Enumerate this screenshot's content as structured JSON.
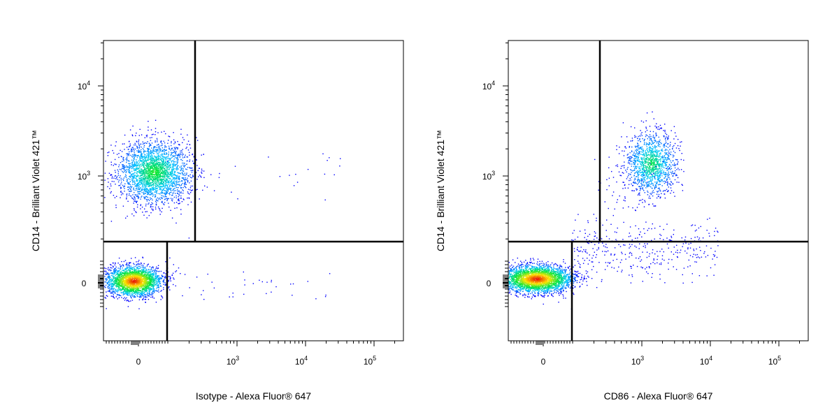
{
  "chart_data": [
    {
      "type": "scatter",
      "title": "",
      "xlabel": "Isotype - Alexa Fluor® 647",
      "ylabel": "CD14 - Brilliant Violet 421™",
      "x_scale": "biexponential",
      "y_scale": "biexponential",
      "xlim": [
        -150,
        150000
      ],
      "ylim": [
        -400,
        30000
      ],
      "x_ticks": [
        {
          "value": 0,
          "label": "0"
        },
        {
          "value": 1000,
          "label": "10",
          "exp": "3"
        },
        {
          "value": 10000,
          "label": "10",
          "exp": "4"
        },
        {
          "value": 100000,
          "label": "10",
          "exp": "5"
        }
      ],
      "y_ticks": [
        {
          "value": 0,
          "label": "0"
        },
        {
          "value": 1000,
          "label": "10",
          "exp": "3"
        },
        {
          "value": 10000,
          "label": "10",
          "exp": "4"
        }
      ],
      "gates": {
        "horizontal_y": 220,
        "upper_vertical_x": 300,
        "lower_vertical_x": 100
      },
      "populations": [
        {
          "name": "",
          "x_center": 20,
          "y_center": 1000,
          "count": 2600
        },
        {
          "name": "",
          "x_center": -10,
          "y_center": 0,
          "count": 2400
        }
      ]
    },
    {
      "type": "scatter",
      "title": "",
      "xlabel": "CD86 - Alexa Fluor® 647",
      "ylabel": "CD14 - Brilliant Violet 421™",
      "x_scale": "biexponential",
      "y_scale": "biexponential",
      "xlim": [
        -150,
        150000
      ],
      "ylim": [
        -400,
        30000
      ],
      "x_ticks": [
        {
          "value": 0,
          "label": "0"
        },
        {
          "value": 1000,
          "label": "10",
          "exp": "3"
        },
        {
          "value": 10000,
          "label": "10",
          "exp": "4"
        },
        {
          "value": 100000,
          "label": "10",
          "exp": "5"
        }
      ],
      "y_ticks": [
        {
          "value": 0,
          "label": "0"
        },
        {
          "value": 1000,
          "label": "10",
          "exp": "3"
        },
        {
          "value": 10000,
          "label": "10",
          "exp": "4"
        }
      ],
      "gates": {
        "horizontal_y": 220,
        "upper_vertical_x": 300,
        "lower_vertical_x": 100
      },
      "populations": [
        {
          "name": "",
          "x_center": 1300,
          "y_center": 1300,
          "count": 1300
        },
        {
          "name": "",
          "x_center": 5,
          "y_center": 10,
          "count": 3000
        }
      ]
    }
  ],
  "colors": {
    "density_low": "#0000ff",
    "density_mid": "#00ff00",
    "density_high": "#ff0000",
    "axis": "#000000"
  }
}
